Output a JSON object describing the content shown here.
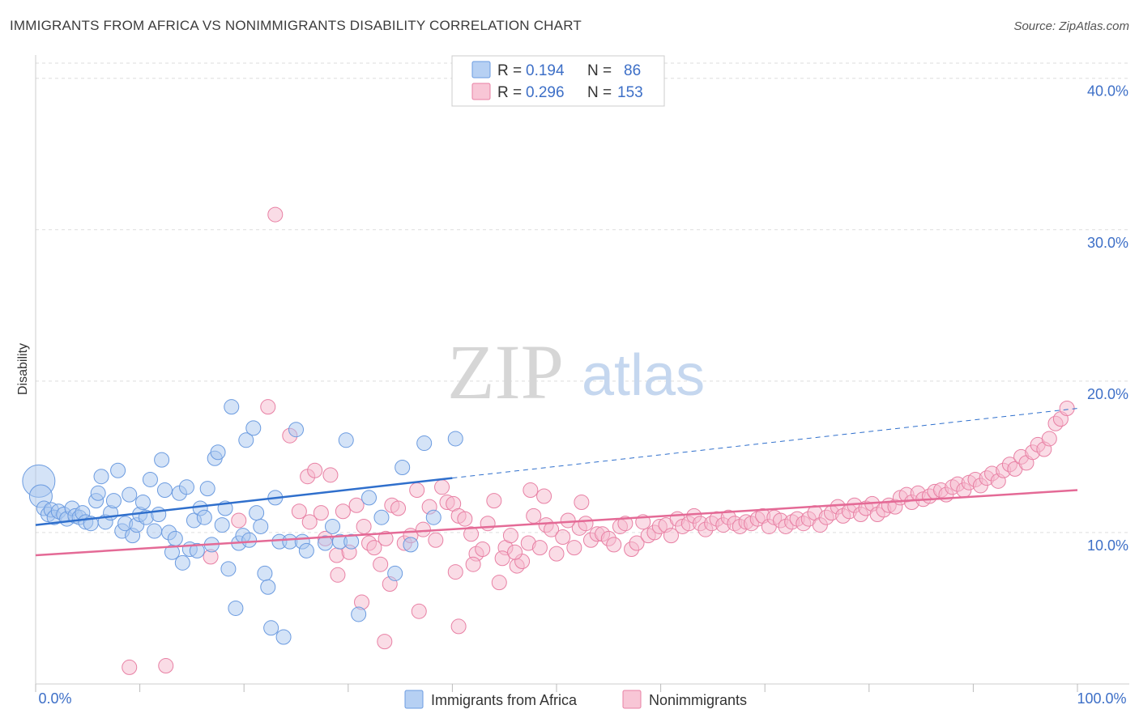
{
  "title": "IMMIGRANTS FROM AFRICA VS NONIMMIGRANTS DISABILITY CORRELATION CHART",
  "source": "Source: ZipAtlas.com",
  "watermark": {
    "zip": "ZIP",
    "atlas": "atlas"
  },
  "legend": {
    "rows": [
      {
        "r_label": "R =",
        "r_value": "0.194",
        "n_label": "N =",
        "n_value": "86"
      },
      {
        "r_label": "R =",
        "r_value": "0.296",
        "n_label": "N =",
        "n_value": "153"
      }
    ]
  },
  "colors": {
    "blue": "#6b9be0",
    "blue_fill": "#a9c7ef",
    "blue_line": "#2f6fcc",
    "pink": "#e880a4",
    "pink_fill": "#f5b9cd",
    "pink_line": "#e46a96",
    "grid": "#dddddd",
    "axis_text": "#3d6fc7"
  },
  "chart_data": {
    "type": "scatter",
    "title": "IMMIGRANTS FROM AFRICA VS NONIMMIGRANTS DISABILITY CORRELATION CHART",
    "xlabel": "",
    "ylabel": "Disability",
    "xlim": [
      0,
      100
    ],
    "ylim": [
      0,
      41
    ],
    "x_tick_labels": [
      "0.0%",
      "100.0%"
    ],
    "y_tick_labels": [
      "10.0%",
      "20.0%",
      "30.0%",
      "40.0%"
    ],
    "y_ticks": [
      10,
      20,
      30,
      40
    ],
    "grid": true,
    "legend_position": "bottom",
    "series": [
      {
        "name": "Immigrants from Africa",
        "color": "#6b9be0",
        "trend": {
          "x": [
            0,
            40
          ],
          "y": [
            10.5,
            13.6
          ],
          "dashed_extension_to": [
            100,
            18.2
          ]
        },
        "points": [
          [
            0.3,
            13.4
          ],
          [
            0.5,
            12.4
          ],
          [
            0.8,
            11.6
          ],
          [
            1.2,
            11.2
          ],
          [
            1.5,
            11.5
          ],
          [
            1.8,
            11.0
          ],
          [
            2.2,
            11.4
          ],
          [
            2.7,
            11.2
          ],
          [
            3.0,
            10.9
          ],
          [
            3.5,
            11.6
          ],
          [
            3.8,
            11.1
          ],
          [
            4.2,
            11.0
          ],
          [
            4.5,
            11.3
          ],
          [
            4.8,
            10.7
          ],
          [
            5.3,
            10.6
          ],
          [
            5.8,
            12.1
          ],
          [
            6.0,
            12.6
          ],
          [
            6.3,
            13.7
          ],
          [
            6.7,
            10.7
          ],
          [
            7.2,
            11.3
          ],
          [
            7.5,
            12.1
          ],
          [
            7.9,
            14.1
          ],
          [
            8.3,
            10.1
          ],
          [
            8.6,
            10.6
          ],
          [
            9.0,
            12.5
          ],
          [
            9.3,
            9.8
          ],
          [
            9.7,
            10.5
          ],
          [
            10.0,
            11.2
          ],
          [
            10.3,
            12.0
          ],
          [
            10.6,
            11.0
          ],
          [
            11.0,
            13.5
          ],
          [
            11.4,
            10.1
          ],
          [
            11.8,
            11.2
          ],
          [
            12.1,
            14.8
          ],
          [
            12.4,
            12.8
          ],
          [
            12.8,
            10.0
          ],
          [
            13.1,
            8.7
          ],
          [
            13.4,
            9.6
          ],
          [
            13.8,
            12.6
          ],
          [
            14.1,
            8.0
          ],
          [
            14.5,
            13.0
          ],
          [
            14.8,
            8.9
          ],
          [
            15.2,
            10.8
          ],
          [
            15.5,
            8.8
          ],
          [
            15.8,
            11.6
          ],
          [
            16.2,
            11.0
          ],
          [
            16.5,
            12.9
          ],
          [
            16.9,
            9.2
          ],
          [
            17.2,
            14.9
          ],
          [
            17.5,
            15.3
          ],
          [
            17.9,
            10.5
          ],
          [
            18.2,
            11.6
          ],
          [
            18.5,
            7.6
          ],
          [
            18.8,
            18.3
          ],
          [
            19.2,
            5.0
          ],
          [
            19.5,
            9.3
          ],
          [
            19.9,
            9.8
          ],
          [
            20.2,
            16.1
          ],
          [
            20.5,
            9.5
          ],
          [
            20.9,
            16.9
          ],
          [
            21.2,
            11.3
          ],
          [
            21.6,
            10.4
          ],
          [
            22.0,
            7.3
          ],
          [
            22.3,
            6.4
          ],
          [
            22.6,
            3.7
          ],
          [
            23.0,
            12.3
          ],
          [
            23.4,
            9.4
          ],
          [
            23.8,
            3.1
          ],
          [
            24.4,
            9.4
          ],
          [
            25.0,
            16.8
          ],
          [
            25.6,
            9.4
          ],
          [
            26.0,
            8.8
          ],
          [
            27.8,
            9.3
          ],
          [
            28.5,
            10.4
          ],
          [
            29.2,
            9.4
          ],
          [
            29.8,
            16.1
          ],
          [
            30.3,
            9.4
          ],
          [
            31.0,
            4.6
          ],
          [
            32.0,
            12.3
          ],
          [
            33.2,
            11.0
          ],
          [
            34.5,
            7.3
          ],
          [
            35.2,
            14.3
          ],
          [
            36.0,
            9.2
          ],
          [
            37.3,
            15.9
          ],
          [
            38.2,
            11.0
          ],
          [
            40.3,
            16.2
          ]
        ]
      },
      {
        "name": "Nonimmigrants",
        "color": "#e880a4",
        "trend": {
          "x": [
            0,
            100
          ],
          "y": [
            8.5,
            12.8
          ]
        },
        "points": [
          [
            9.0,
            1.1
          ],
          [
            12.5,
            1.2
          ],
          [
            16.8,
            8.4
          ],
          [
            19.5,
            10.8
          ],
          [
            22.3,
            18.3
          ],
          [
            23.0,
            31.0
          ],
          [
            24.4,
            16.4
          ],
          [
            25.3,
            11.4
          ],
          [
            26.1,
            13.7
          ],
          [
            26.8,
            14.1
          ],
          [
            27.4,
            11.3
          ],
          [
            27.8,
            9.6
          ],
          [
            28.3,
            13.8
          ],
          [
            28.9,
            8.5
          ],
          [
            29.5,
            11.4
          ],
          [
            30.1,
            8.7
          ],
          [
            30.8,
            11.8
          ],
          [
            31.5,
            10.4
          ],
          [
            32.0,
            9.3
          ],
          [
            32.5,
            9.0
          ],
          [
            33.1,
            7.9
          ],
          [
            33.6,
            9.6
          ],
          [
            34.2,
            11.8
          ],
          [
            34.8,
            11.6
          ],
          [
            35.4,
            9.3
          ],
          [
            36.0,
            9.8
          ],
          [
            36.6,
            12.8
          ],
          [
            37.2,
            10.2
          ],
          [
            37.8,
            11.7
          ],
          [
            38.4,
            9.5
          ],
          [
            39.0,
            13.0
          ],
          [
            39.5,
            12.0
          ],
          [
            40.1,
            11.9
          ],
          [
            40.6,
            11.1
          ],
          [
            41.2,
            10.9
          ],
          [
            41.8,
            9.9
          ],
          [
            42.3,
            8.6
          ],
          [
            42.9,
            8.9
          ],
          [
            43.4,
            10.6
          ],
          [
            44.0,
            12.1
          ],
          [
            44.5,
            6.7
          ],
          [
            45.1,
            9.0
          ],
          [
            45.6,
            9.8
          ],
          [
            46.2,
            7.8
          ],
          [
            46.7,
            8.1
          ],
          [
            47.3,
            9.3
          ],
          [
            47.8,
            11.1
          ],
          [
            48.4,
            9.0
          ],
          [
            49.0,
            10.5
          ],
          [
            49.5,
            10.2
          ],
          [
            50.0,
            8.6
          ],
          [
            50.6,
            9.7
          ],
          [
            51.1,
            10.8
          ],
          [
            51.7,
            9.0
          ],
          [
            52.2,
            10.3
          ],
          [
            52.8,
            10.6
          ],
          [
            53.3,
            9.5
          ],
          [
            53.9,
            9.9
          ],
          [
            54.4,
            9.9
          ],
          [
            55.0,
            9.6
          ],
          [
            55.5,
            9.2
          ],
          [
            56.1,
            10.4
          ],
          [
            56.6,
            10.6
          ],
          [
            57.2,
            8.9
          ],
          [
            57.7,
            9.3
          ],
          [
            58.3,
            10.7
          ],
          [
            58.8,
            9.8
          ],
          [
            59.4,
            10.0
          ],
          [
            59.9,
            10.4
          ],
          [
            60.5,
            10.5
          ],
          [
            61.0,
            9.8
          ],
          [
            61.6,
            10.9
          ],
          [
            62.1,
            10.4
          ],
          [
            62.7,
            10.6
          ],
          [
            63.2,
            11.1
          ],
          [
            63.8,
            10.6
          ],
          [
            64.3,
            10.2
          ],
          [
            64.9,
            10.6
          ],
          [
            65.4,
            10.9
          ],
          [
            66.0,
            10.5
          ],
          [
            66.5,
            11.0
          ],
          [
            67.1,
            10.6
          ],
          [
            67.6,
            10.4
          ],
          [
            68.2,
            10.7
          ],
          [
            68.7,
            10.6
          ],
          [
            69.3,
            10.9
          ],
          [
            69.8,
            11.1
          ],
          [
            70.4,
            10.4
          ],
          [
            70.9,
            11.0
          ],
          [
            71.5,
            10.8
          ],
          [
            72.0,
            10.4
          ],
          [
            72.6,
            10.7
          ],
          [
            73.1,
            10.9
          ],
          [
            73.7,
            10.6
          ],
          [
            74.2,
            10.9
          ],
          [
            74.8,
            11.3
          ],
          [
            75.3,
            10.5
          ],
          [
            75.9,
            11.0
          ],
          [
            76.4,
            11.3
          ],
          [
            77.0,
            11.7
          ],
          [
            77.5,
            11.1
          ],
          [
            78.1,
            11.4
          ],
          [
            78.6,
            11.8
          ],
          [
            79.2,
            11.2
          ],
          [
            79.7,
            11.6
          ],
          [
            80.3,
            11.9
          ],
          [
            80.8,
            11.2
          ],
          [
            81.4,
            11.5
          ],
          [
            81.9,
            11.8
          ],
          [
            82.5,
            11.7
          ],
          [
            83.0,
            12.3
          ],
          [
            83.6,
            12.5
          ],
          [
            84.1,
            12.0
          ],
          [
            84.7,
            12.6
          ],
          [
            85.2,
            12.2
          ],
          [
            85.8,
            12.4
          ],
          [
            86.3,
            12.7
          ],
          [
            86.9,
            12.8
          ],
          [
            87.4,
            12.5
          ],
          [
            88.0,
            13.0
          ],
          [
            88.5,
            13.2
          ],
          [
            89.1,
            12.8
          ],
          [
            89.6,
            13.3
          ],
          [
            90.2,
            13.5
          ],
          [
            90.7,
            13.1
          ],
          [
            91.3,
            13.6
          ],
          [
            91.8,
            13.9
          ],
          [
            92.4,
            13.4
          ],
          [
            92.9,
            14.1
          ],
          [
            93.5,
            14.5
          ],
          [
            94.0,
            14.2
          ],
          [
            94.6,
            15.0
          ],
          [
            95.1,
            14.6
          ],
          [
            95.7,
            15.3
          ],
          [
            96.2,
            15.8
          ],
          [
            96.8,
            15.5
          ],
          [
            97.3,
            16.2
          ],
          [
            97.9,
            17.2
          ],
          [
            98.4,
            17.5
          ],
          [
            99.0,
            18.2
          ],
          [
            29.0,
            7.2
          ],
          [
            31.3,
            5.4
          ],
          [
            34.0,
            6.6
          ],
          [
            40.3,
            7.4
          ],
          [
            42.0,
            7.9
          ],
          [
            44.8,
            8.3
          ],
          [
            46.0,
            8.7
          ],
          [
            36.8,
            4.8
          ],
          [
            40.6,
            3.8
          ],
          [
            33.5,
            2.8
          ],
          [
            47.5,
            12.8
          ],
          [
            48.8,
            12.4
          ],
          [
            52.4,
            12.0
          ],
          [
            26.3,
            10.7
          ]
        ]
      }
    ]
  }
}
